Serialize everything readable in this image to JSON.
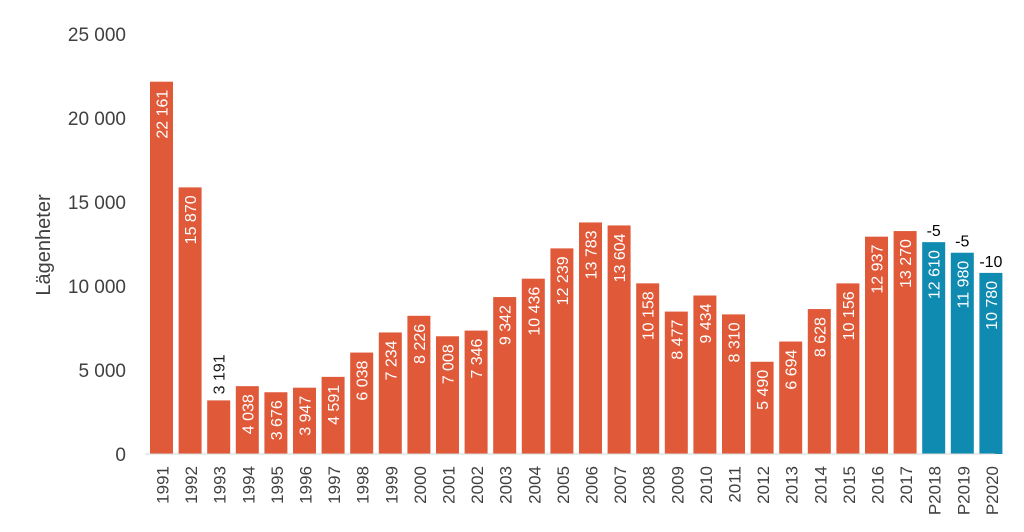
{
  "chart_data": {
    "type": "bar",
    "ylabel": "Lägenheter",
    "ylim": [
      0,
      25000
    ],
    "yticks": [
      0,
      5000,
      10000,
      15000,
      20000,
      25000
    ],
    "ytick_labels": [
      "0",
      "5 000",
      "10 000",
      "15 000",
      "20 000",
      "25 000"
    ],
    "grid": false,
    "categories": [
      "1991",
      "1992",
      "1993",
      "1994",
      "1995",
      "1996",
      "1997",
      "1998",
      "1999",
      "2000",
      "2001",
      "2002",
      "2003",
      "2004",
      "2005",
      "2006",
      "2007",
      "2008",
      "2009",
      "2010",
      "2011",
      "2012",
      "2013",
      "2014",
      "2015",
      "2016",
      "2017",
      "P2018",
      "P2019",
      "P2020"
    ],
    "values": [
      22161,
      15870,
      3191,
      4038,
      3676,
      3947,
      4591,
      6038,
      7234,
      8226,
      7008,
      7346,
      9342,
      10436,
      12239,
      13783,
      13604,
      10158,
      8477,
      9434,
      8310,
      5490,
      6694,
      8628,
      10156,
      12937,
      13270,
      12610,
      11980,
      10780
    ],
    "value_labels": [
      "22 161",
      "15 870",
      "3 191",
      "4 038",
      "3 676",
      "3 947",
      "4 591",
      "6 038",
      "7 234",
      "8 226",
      "7 008",
      "7 346",
      "9 342",
      "10 436",
      "12 239",
      "13 783",
      "13 604",
      "10 158",
      "8 477",
      "9 434",
      "8 310",
      "5 490",
      "6 694",
      "8 628",
      "10 156",
      "12 937",
      "13 270",
      "12 610",
      "11 980",
      "10 780"
    ],
    "forecast": [
      false,
      false,
      false,
      false,
      false,
      false,
      false,
      false,
      false,
      false,
      false,
      false,
      false,
      false,
      false,
      false,
      false,
      false,
      false,
      false,
      false,
      false,
      false,
      false,
      false,
      false,
      false,
      true,
      true,
      true
    ],
    "change_labels": {
      "P2018": "-5",
      "P2019": "-5",
      "P2020": "-10"
    },
    "colors": {
      "actual": "#e05a3a",
      "forecast": "#0f8ab0",
      "axis_text": "#404040"
    }
  }
}
